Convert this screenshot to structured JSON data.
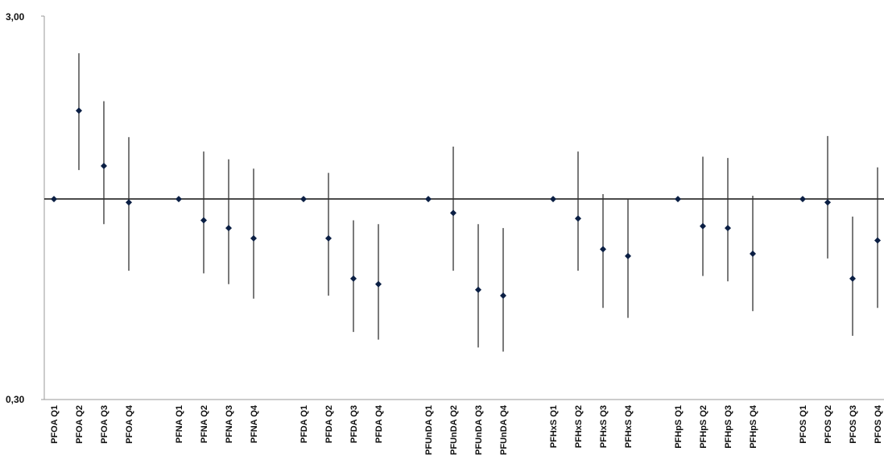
{
  "chart_data": {
    "type": "scatter",
    "subtype": "point-with-error-bars",
    "scale": "log",
    "ylim": [
      0.3,
      3.0
    ],
    "y_tick_labels": [
      "3,00",
      "0,30"
    ],
    "y_ticks": [
      3.0,
      0.3
    ],
    "reference_line": 1.0,
    "grid": false,
    "legend": "none",
    "marker_color": "#0b1f44",
    "bar_color": "#333333",
    "categories": [
      "PFOA Q1",
      "PFOA Q2",
      "PFOA Q3",
      "PFOA Q4",
      "PFNA Q1",
      "PFNA Q2",
      "PFNA Q3",
      "PFNA Q4",
      "PFDA Q1",
      "PFDA Q2",
      "PFDA Q3",
      "PFDA Q4",
      "PFUnDA Q1",
      "PFUnDA Q2",
      "PFUnDA Q3",
      "PFUnDA Q4",
      "PFHxS Q1",
      "PFHxS Q2",
      "PFHxS Q3",
      "PFHxS Q4",
      "PFHpS Q1",
      "PFHpS Q2",
      "PFHpS Q3",
      "PFHpS Q4",
      "PFOS Q1",
      "PFOS Q2",
      "PFOS Q3",
      "PFOS Q4"
    ],
    "groups": [
      4,
      4,
      4,
      4,
      4,
      4,
      4
    ],
    "estimate": [
      1.0,
      1.7,
      1.22,
      0.98,
      1.0,
      0.88,
      0.84,
      0.79,
      1.0,
      0.79,
      0.62,
      0.6,
      1.0,
      0.92,
      0.58,
      0.56,
      1.0,
      0.89,
      0.74,
      0.71,
      1.0,
      0.85,
      0.84,
      0.72,
      1.0,
      0.98,
      0.62,
      0.78
    ],
    "lower": [
      1.0,
      1.19,
      0.86,
      0.65,
      1.0,
      0.64,
      0.6,
      0.55,
      1.0,
      0.56,
      0.45,
      0.43,
      1.0,
      0.65,
      0.41,
      0.4,
      1.0,
      0.65,
      0.52,
      0.49,
      1.0,
      0.63,
      0.61,
      0.51,
      1.0,
      0.7,
      0.44,
      0.52
    ],
    "upper": [
      1.0,
      2.4,
      1.8,
      1.45,
      1.0,
      1.33,
      1.27,
      1.2,
      1.0,
      1.17,
      0.88,
      0.86,
      1.0,
      1.37,
      0.86,
      0.84,
      1.0,
      1.33,
      1.03,
      1.0,
      1.0,
      1.29,
      1.28,
      1.02,
      1.0,
      1.46,
      0.9,
      1.21
    ]
  }
}
